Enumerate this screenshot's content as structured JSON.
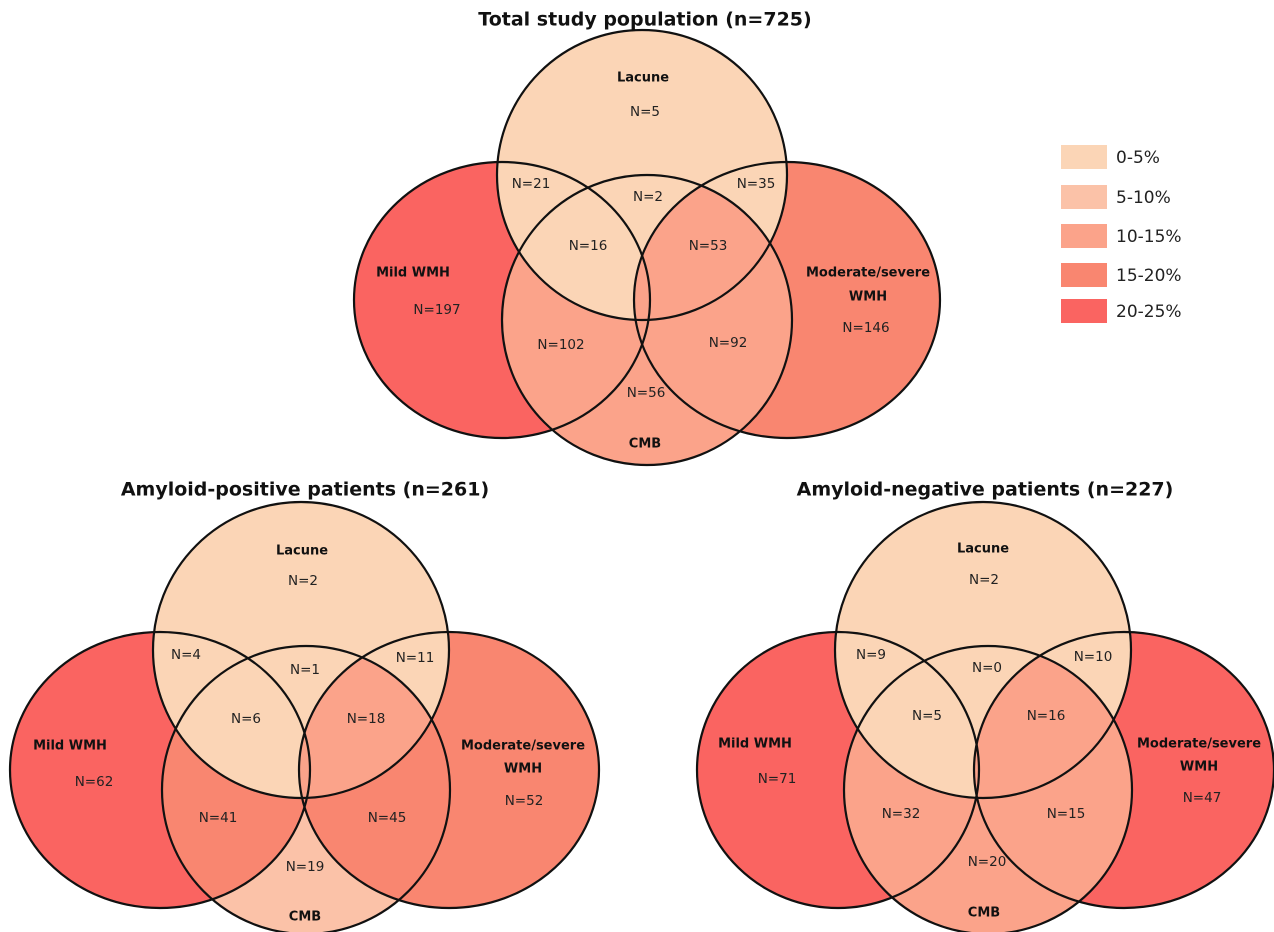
{
  "colors": {
    "c0": "#fbd5b6",
    "c1": "#fbc2a8",
    "c2": "#fba38a",
    "c3": "#f98670",
    "c4": "#fa6461",
    "outline": "#111111"
  },
  "legend": [
    {
      "label": "0-5%",
      "color_key": "c0"
    },
    {
      "label": "5-10%",
      "color_key": "c1"
    },
    {
      "label": "10-15%",
      "color_key": "c2"
    },
    {
      "label": "15-20%",
      "color_key": "c3"
    },
    {
      "label": "20-25%",
      "color_key": "c4"
    }
  ],
  "diagrams": [
    {
      "title": "Total study population (n=725)",
      "labels": {
        "lacune": "Lacune",
        "mild": "Mild WMH",
        "modsev1": "Moderate/severe",
        "modsev2": "WMH",
        "cmb": "CMB"
      },
      "counts": {
        "lacune_only": "N=5",
        "mild_only": "N=197",
        "mod_only": "N=146",
        "cmb_only": "N=56",
        "lac_mild": "N=21",
        "lac_mod": "N=35",
        "lac_cmb": "N=2",
        "lac_mild_cmb": "N=16",
        "lac_mod_cmb": "N=53",
        "mild_cmb": "N=102",
        "mod_cmb": "N=92"
      },
      "fills": {
        "lacune_only": "c0",
        "mild_only": "c4",
        "mod_only": "c3",
        "cmb_only": "c2",
        "lac_mild": "c0",
        "lac_mod": "c0",
        "lac_cmb": "c0",
        "lac_mild_cmb": "c0",
        "lac_mod_cmb": "c2",
        "mild_cmb": "c2",
        "mod_cmb": "c2"
      }
    },
    {
      "title": "Amyloid-positive patients (n=261)",
      "labels": {
        "lacune": "Lacune",
        "mild": "Mild WMH",
        "modsev1": "Moderate/severe",
        "modsev2": "WMH",
        "cmb": "CMB"
      },
      "counts": {
        "lacune_only": "N=2",
        "mild_only": "N=62",
        "mod_only": "N=52",
        "cmb_only": "N=19",
        "lac_mild": "N=4",
        "lac_mod": "N=11",
        "lac_cmb": "N=1",
        "lac_mild_cmb": "N=6",
        "lac_mod_cmb": "N=18",
        "mild_cmb": "N=41",
        "mod_cmb": "N=45"
      },
      "fills": {
        "lacune_only": "c0",
        "mild_only": "c4",
        "mod_only": "c3",
        "cmb_only": "c1",
        "lac_mild": "c0",
        "lac_mod": "c0",
        "lac_cmb": "c0",
        "lac_mild_cmb": "c0",
        "lac_mod_cmb": "c2",
        "mild_cmb": "c3",
        "mod_cmb": "c3"
      }
    },
    {
      "title": "Amyloid-negative patients (n=227)",
      "labels": {
        "lacune": "Lacune",
        "mild": "Mild WMH",
        "modsev1": "Moderate/severe",
        "modsev2": "WMH",
        "cmb": "CMB"
      },
      "counts": {
        "lacune_only": "N=2",
        "mild_only": "N=71",
        "mod_only": "N=47",
        "cmb_only": "N=20",
        "lac_mild": "N=9",
        "lac_mod": "N=10",
        "lac_cmb": "N=0",
        "lac_mild_cmb": "N=5",
        "lac_mod_cmb": "N=16",
        "mild_cmb": "N=32",
        "mod_cmb": "N=15"
      },
      "fills": {
        "lacune_only": "c0",
        "mild_only": "c4",
        "mod_only": "c4",
        "cmb_only": "c2",
        "lac_mild": "c0",
        "lac_mod": "c0",
        "lac_cmb": "c0",
        "lac_mild_cmb": "c0",
        "lac_mod_cmb": "c2",
        "mild_cmb": "c2",
        "mod_cmb": "c2"
      }
    }
  ]
}
